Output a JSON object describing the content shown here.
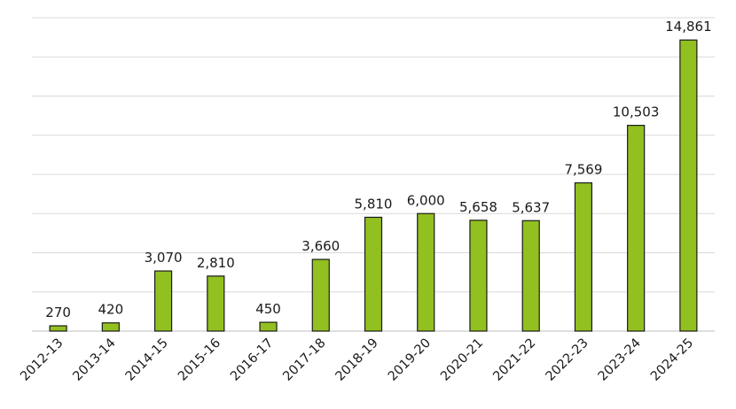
{
  "chart_data": {
    "type": "bar",
    "title": "",
    "xlabel": "",
    "ylabel": "",
    "categories": [
      "2012-13",
      "2013-14",
      "2014-15",
      "2015-16",
      "2016-17",
      "2017-18",
      "2018-19",
      "2019-20",
      "2020-21",
      "2021-22",
      "2022-23",
      "2023-24",
      "2024-25"
    ],
    "values": [
      270,
      420,
      3070,
      2810,
      450,
      3660,
      5810,
      6000,
      5658,
      5637,
      7569,
      10503,
      14861
    ],
    "value_labels": [
      "270",
      "420",
      "3,070",
      "2,810",
      "450",
      "3,660",
      "5,810",
      "6,000",
      "5,658",
      "5,637",
      "7,569",
      "10,503",
      "14,861"
    ],
    "ylim": [
      0,
      16000
    ],
    "y_grid_step": 2000,
    "grid": true,
    "y_tick_labels_visible": false,
    "x_tick_rotation": -45,
    "legend": "none",
    "colors": {
      "bar_fill": "#92c020",
      "bar_stroke": "#1a1a1a",
      "gridline": "#d9d9d9"
    }
  }
}
